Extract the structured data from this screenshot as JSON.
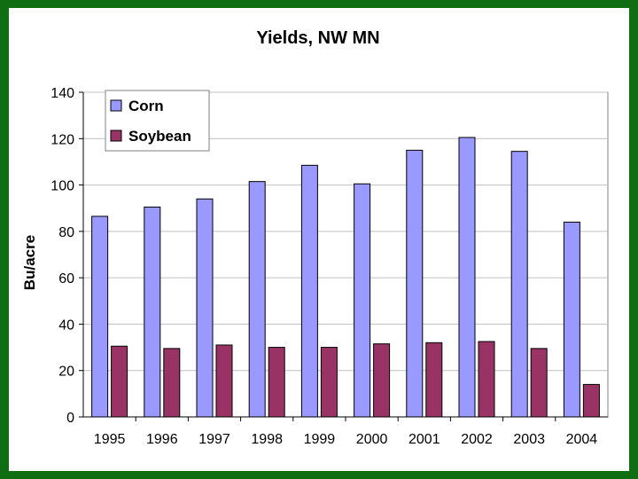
{
  "colors": {
    "background": "#0f6e12",
    "plot_area": "#ffffff",
    "corn": "#9999ff",
    "soybean": "#993366",
    "gridline": "#c0c0c0"
  },
  "chart_data": {
    "type": "bar",
    "title": "Yields, NW MN",
    "xlabel": "",
    "ylabel": "Bu/acre",
    "categories": [
      "1995",
      "1996",
      "1997",
      "1998",
      "1999",
      "2000",
      "2001",
      "2002",
      "2003",
      "2004"
    ],
    "series": [
      {
        "name": "Corn",
        "color": "#9999ff",
        "values": [
          86.5,
          90.5,
          94,
          101.5,
          108.5,
          100.5,
          115,
          120.5,
          114.5,
          84
        ]
      },
      {
        "name": "Soybean",
        "color": "#993366",
        "values": [
          30.5,
          29.5,
          31,
          30,
          30,
          31.5,
          32,
          32.5,
          29.5,
          14
        ]
      }
    ],
    "ylim": [
      0,
      140
    ],
    "yticks": [
      0,
      20,
      40,
      60,
      80,
      100,
      120,
      140
    ],
    "grid": true,
    "legend_position": "top-left"
  }
}
